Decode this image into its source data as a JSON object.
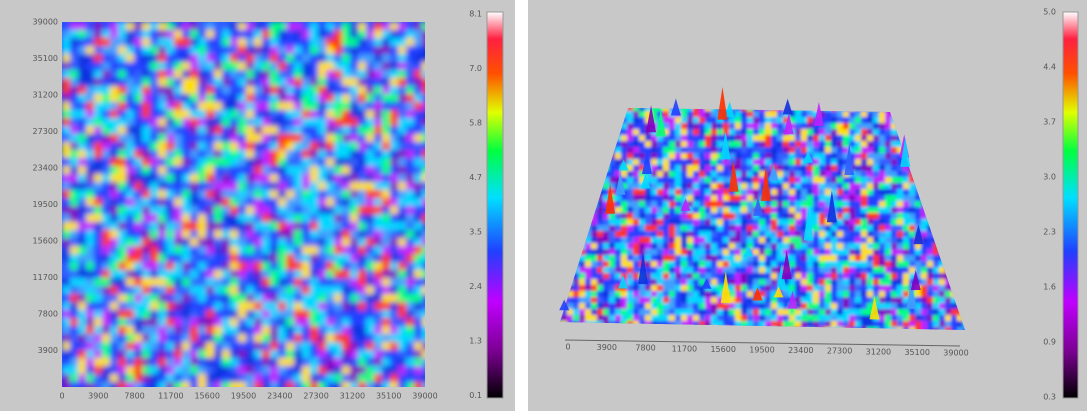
{
  "left_panel": {
    "y_axis_labels": [
      "39000",
      "35100",
      "31200",
      "27300",
      "23400",
      "19500",
      "15600",
      "11700",
      "7800",
      "3900"
    ],
    "x_axis_labels": [
      "0",
      "3900",
      "7800",
      "11700",
      "15600",
      "19500",
      "23400",
      "27300",
      "31200",
      "35100",
      "39000"
    ],
    "colorbar_labels": [
      "8.1",
      "7.0",
      "5.8",
      "4.7",
      "3.5",
      "2.4",
      "1.3",
      "0.1"
    ]
  },
  "right_panel": {
    "x_axis_labels": [
      "0",
      "3900",
      "7800",
      "11700",
      "15600",
      "19500",
      "23400",
      "27300",
      "31200",
      "35100",
      "39000"
    ],
    "colorbar_labels": [
      "5.0",
      "4.4",
      "3.7",
      "3.0",
      "2.3",
      "1.6",
      "0.9",
      "0.3"
    ]
  }
}
